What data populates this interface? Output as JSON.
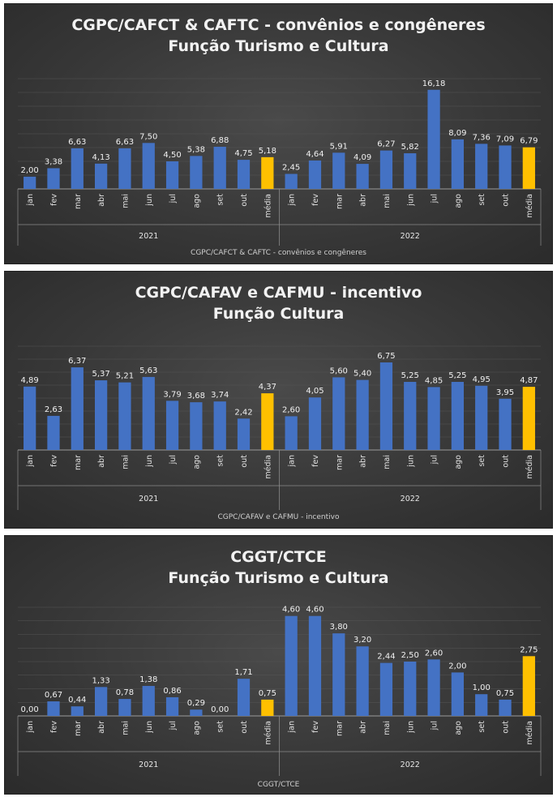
{
  "chart_data": [
    {
      "type": "bar",
      "title": "CGPC/CAFCT & CAFTC - convênios e congêneres",
      "subtitle": "Função Turismo e Cultura",
      "footer": "CGPC/CAFCT & CAFTC - convênios e congêneres",
      "groups": [
        "2021",
        "2022"
      ],
      "categories": [
        "jan",
        "fev",
        "mar",
        "abr",
        "mai",
        "jun",
        "jul",
        "ago",
        "set",
        "out",
        "média"
      ],
      "series": [
        {
          "values": [
            2.0,
            3.38,
            6.63,
            4.13,
            6.63,
            7.5,
            4.5,
            5.38,
            6.88,
            4.75,
            5.18
          ]
        },
        {
          "values": [
            2.45,
            4.64,
            5.91,
            4.09,
            6.27,
            5.82,
            16.18,
            8.09,
            7.36,
            7.09,
            6.79
          ]
        }
      ],
      "labels": [
        [
          "2,00",
          "3,38",
          "6,63",
          "4,13",
          "6,63",
          "7,50",
          "4,50",
          "5,38",
          "6,88",
          "4,75",
          "5,18"
        ],
        [
          "2,45",
          "4,64",
          "5,91",
          "4,09",
          "6,27",
          "5,82",
          "16,18",
          "8,09",
          "7,36",
          "7,09",
          "6,79"
        ]
      ],
      "ylim": [
        0,
        18
      ],
      "colors": {
        "bar": "#4472c4",
        "highlight": "#ffc000"
      }
    },
    {
      "type": "bar",
      "title": "CGPC/CAFAV e CAFMU - incentivo",
      "subtitle": "Função Cultura",
      "footer": "CGPC/CAFAV e CAFMU - incentivo",
      "groups": [
        "2021",
        "2022"
      ],
      "categories": [
        "jan",
        "fev",
        "mar",
        "abr",
        "mai",
        "jun",
        "jul",
        "ago",
        "set",
        "out",
        "média"
      ],
      "series": [
        {
          "values": [
            4.89,
            2.63,
            6.37,
            5.37,
            5.21,
            5.63,
            3.79,
            3.68,
            3.74,
            2.42,
            4.37
          ]
        },
        {
          "values": [
            2.6,
            4.05,
            5.6,
            5.4,
            6.75,
            5.25,
            4.85,
            5.25,
            4.95,
            3.95,
            4.87
          ]
        }
      ],
      "labels": [
        [
          "4,89",
          "2,63",
          "6,37",
          "5,37",
          "5,21",
          "5,63",
          "3,79",
          "3,68",
          "3,74",
          "2,42",
          "4,37"
        ],
        [
          "2,60",
          "4,05",
          "5,60",
          "5,40",
          "6,75",
          "5,25",
          "4,85",
          "5,25",
          "4,95",
          "3,95",
          "4,87"
        ]
      ],
      "ylim": [
        0,
        8
      ],
      "colors": {
        "bar": "#4472c4",
        "highlight": "#ffc000"
      }
    },
    {
      "type": "bar",
      "title": "CGGT/CTCE",
      "subtitle": "Função Turismo e Cultura",
      "footer": "CGGT/CTCE",
      "groups": [
        "2021",
        "2022"
      ],
      "categories": [
        "jan",
        "fev",
        "mar",
        "abr",
        "mai",
        "jun",
        "jul",
        "ago",
        "set",
        "out",
        "média"
      ],
      "series": [
        {
          "values": [
            0.0,
            0.67,
            0.44,
            1.33,
            0.78,
            1.38,
            0.86,
            0.29,
            0.0,
            1.71,
            0.75
          ]
        },
        {
          "values": [
            4.6,
            4.6,
            3.8,
            3.2,
            2.44,
            2.5,
            2.6,
            2.0,
            1.0,
            0.75,
            2.75
          ]
        }
      ],
      "labels": [
        [
          "0,00",
          "0,67",
          "0,44",
          "1,33",
          "0,78",
          "1,38",
          "0,86",
          "0,29",
          "0,00",
          "1,71",
          "0,75"
        ],
        [
          "4,60",
          "4,60",
          "3,80",
          "3,20",
          "2,44",
          "2,50",
          "2,60",
          "2,00",
          "1,00",
          "0,75",
          "2,75"
        ]
      ],
      "ylim": [
        0,
        5
      ],
      "colors": {
        "bar": "#4472c4",
        "highlight": "#ffc000"
      }
    }
  ]
}
